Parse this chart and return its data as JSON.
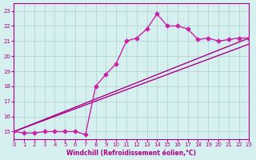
{
  "bg_color": "#d6f0f0",
  "grid_color": "#aacfcf",
  "line_color": "#aa0088",
  "line_color2": "#cc22aa",
  "xlabel": "Windchill (Refroidissement éolien,°C)",
  "xlim": [
    0,
    23
  ],
  "ylim": [
    14.5,
    23.5
  ],
  "yticks": [
    15,
    16,
    17,
    18,
    19,
    20,
    21,
    22,
    23
  ],
  "xticks": [
    0,
    1,
    2,
    3,
    4,
    5,
    6,
    7,
    8,
    9,
    10,
    11,
    12,
    13,
    14,
    15,
    16,
    17,
    18,
    19,
    20,
    21,
    22,
    23
  ],
  "series1_x": [
    0,
    1,
    2,
    3,
    4,
    5,
    6,
    7,
    8,
    9,
    10,
    11,
    12,
    13,
    14,
    15,
    16,
    17,
    18,
    19,
    20,
    21,
    22,
    23
  ],
  "series1_y": [
    15,
    14.9,
    14.9,
    15,
    15,
    15,
    15,
    14.8,
    18,
    18.8,
    19.5,
    21,
    21.2,
    21.8,
    22.8,
    22,
    22,
    21.8,
    21.1,
    21.2,
    21,
    21.1,
    21.2,
    21.2
  ],
  "series2_x": [
    0,
    23
  ],
  "series2_y": [
    15,
    21.2
  ],
  "series3_x": [
    0,
    23
  ],
  "series3_y": [
    15,
    20.8
  ],
  "marker": "D",
  "markersize": 2.5,
  "linewidth": 1.0
}
